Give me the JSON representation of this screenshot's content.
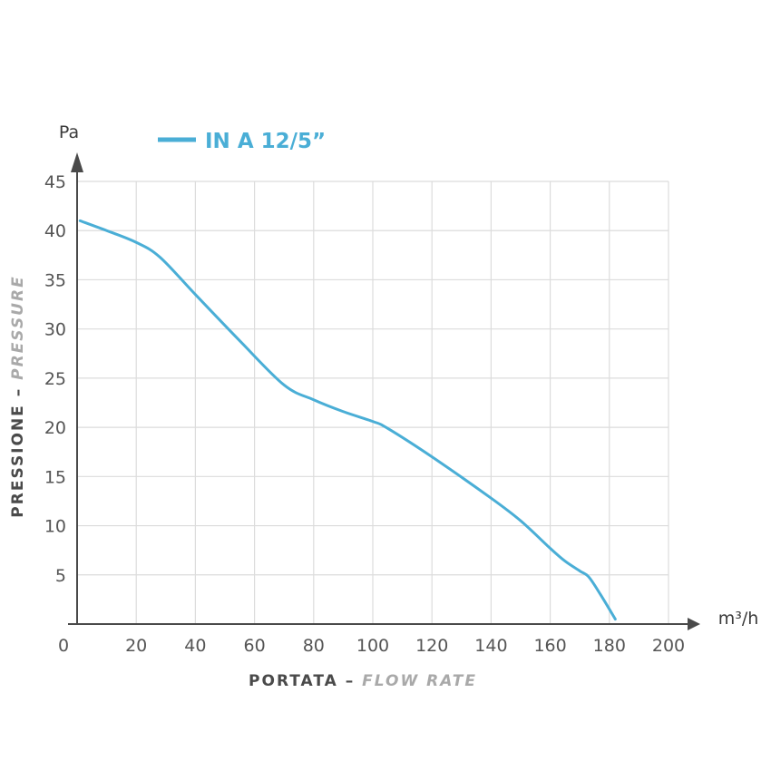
{
  "chart_data": {
    "type": "line",
    "title": "",
    "xlabel_main": "PORTATA",
    "xlabel_dash": " – ",
    "xlabel_sub": "FLOW RATE",
    "ylabel_main": "PRESSIONE",
    "ylabel_dash": " – ",
    "ylabel_sub": "PRESSURE",
    "x_unit": "m³/h",
    "y_unit": "Pa",
    "xlim": [
      0,
      200
    ],
    "ylim": [
      0,
      45
    ],
    "x_ticks": [
      "0",
      "20",
      "40",
      "60",
      "80",
      "100",
      "120",
      "140",
      "160",
      "180",
      "200"
    ],
    "y_ticks": [
      "5",
      "10",
      "15",
      "20",
      "25",
      "30",
      "35",
      "40",
      "45"
    ],
    "grid": true,
    "legend_position": "top-left",
    "series": [
      {
        "name": "IN A 12/5”",
        "color": "#4aaed6",
        "x": [
          1,
          10,
          20,
          28,
          40,
          55,
          70,
          80,
          90,
          100,
          105,
          120,
          140,
          150,
          160,
          165,
          170,
          173,
          177,
          182
        ],
        "y": [
          41,
          40,
          38.8,
          37.3,
          33.5,
          28.8,
          24.3,
          22.8,
          21.6,
          20.6,
          19.9,
          17.0,
          12.8,
          10.5,
          7.7,
          6.4,
          5.4,
          4.8,
          3.0,
          0.5
        ]
      }
    ]
  }
}
